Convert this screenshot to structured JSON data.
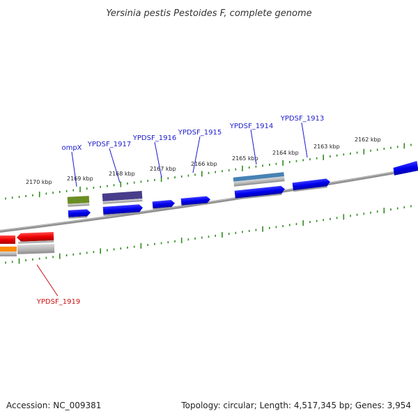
{
  "title": "Yersinia pestis Pestoides F, complete genome",
  "footer": {
    "accession": "Accession: NC_009381",
    "summary": "Topology: circular; Length: 4,517,345 bp; Genes: 3,954"
  },
  "colors": {
    "backbone": "#808080",
    "tick": "#2e8b1e",
    "label_forward": "#1a1acd",
    "label_reverse": "#cc1111"
  },
  "kbp_labels": [
    "2170 kbp",
    "2169 kbp",
    "2168 kbp",
    "2167 kbp",
    "2166 kbp",
    "2165 kbp",
    "2164 kbp",
    "2163 kbp",
    "2162 kbp"
  ],
  "gene_labels": [
    {
      "text": "ompX",
      "strand": "forward"
    },
    {
      "text": "YPDSF_1917",
      "strand": "forward"
    },
    {
      "text": "YPDSF_1916",
      "strand": "forward"
    },
    {
      "text": "YPDSF_1915",
      "strand": "forward"
    },
    {
      "text": "YPDSF_1914",
      "strand": "forward"
    },
    {
      "text": "YPDSF_1913",
      "strand": "forward"
    },
    {
      "text": "YPDSF_1919",
      "strand": "reverse"
    }
  ],
  "features": [
    {
      "name": "ompX-feature",
      "color": "#6b8e23"
    },
    {
      "name": "ypdsf-1917-feature",
      "color": "#483d8b"
    },
    {
      "name": "ypdsf-1914-feature",
      "color": "#4682b4"
    },
    {
      "name": "forward-cds",
      "color": "#0000ee"
    },
    {
      "name": "reverse-cds",
      "color": "#ee0000"
    },
    {
      "name": "reverse-aux-feature",
      "color": "#ff8c00"
    },
    {
      "name": "gene-track",
      "color": "#b0b0b0"
    }
  ]
}
